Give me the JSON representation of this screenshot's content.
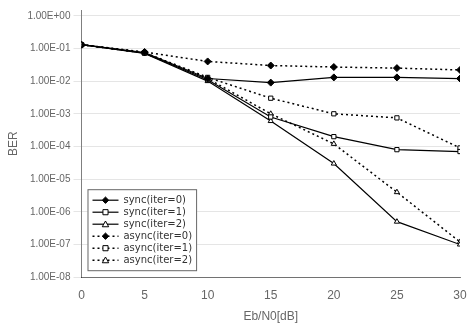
{
  "chart_data": {
    "type": "line",
    "xlabel": "Eb/N0[dB]",
    "ylabel": "BER",
    "log": "y",
    "grid": "y",
    "legend": "lower left",
    "x": [
      0,
      5,
      10,
      15,
      20,
      25,
      30
    ],
    "xlim": [
      0,
      30
    ],
    "xticks": [
      0,
      5,
      10,
      15,
      20,
      25,
      30
    ],
    "ylim": [
      1e-08,
      1.5
    ],
    "yticks": [
      {
        "value": 1e-08,
        "label": "1.00E-08"
      },
      {
        "value": 1e-07,
        "label": "1.00E-07"
      },
      {
        "value": 1e-06,
        "label": "1.00E-06"
      },
      {
        "value": 1e-05,
        "label": "1.00E-05"
      },
      {
        "value": 0.0001,
        "label": "1.00E-04"
      },
      {
        "value": 0.001,
        "label": "1.00E-03"
      },
      {
        "value": 0.01,
        "label": "1.00E-02"
      },
      {
        "value": 0.1,
        "label": "1.00E-01"
      },
      {
        "value": 1,
        "label": "1.00E+00"
      }
    ],
    "series": [
      {
        "name": "sync(iter=0)",
        "color": "black",
        "marker": "diamond",
        "line_style": "solid",
        "values": [
          0.13,
          0.075,
          0.012,
          0.009,
          0.013,
          0.013,
          0.012
        ]
      },
      {
        "name": "sync(iter=1)",
        "color": "black",
        "marker": "square_open",
        "line_style": "solid",
        "values": [
          0.13,
          0.072,
          0.011,
          0.0008,
          0.0002,
          8e-05,
          7e-05
        ]
      },
      {
        "name": "sync(iter=2)",
        "color": "black",
        "marker": "triangle_open",
        "line_style": "solid",
        "values": [
          0.13,
          0.07,
          0.01,
          0.0006,
          3e-05,
          5e-07,
          1e-07
        ]
      },
      {
        "name": "async(iter=0)",
        "color": "black",
        "marker": "diamond",
        "line_style": "dotted",
        "values": [
          0.13,
          0.078,
          0.04,
          0.03,
          0.027,
          0.025,
          0.022
        ]
      },
      {
        "name": "async(iter=1)",
        "color": "black",
        "marker": "square_open",
        "line_style": "dotted",
        "values": [
          0.13,
          0.075,
          0.013,
          0.003,
          0.001,
          0.00075,
          9e-05
        ]
      },
      {
        "name": "async(iter=2)",
        "color": "black",
        "marker": "triangle_open",
        "line_style": "dotted",
        "values": [
          0.13,
          0.072,
          0.012,
          0.001,
          0.00012,
          4e-06,
          1.2e-07
        ]
      }
    ]
  }
}
